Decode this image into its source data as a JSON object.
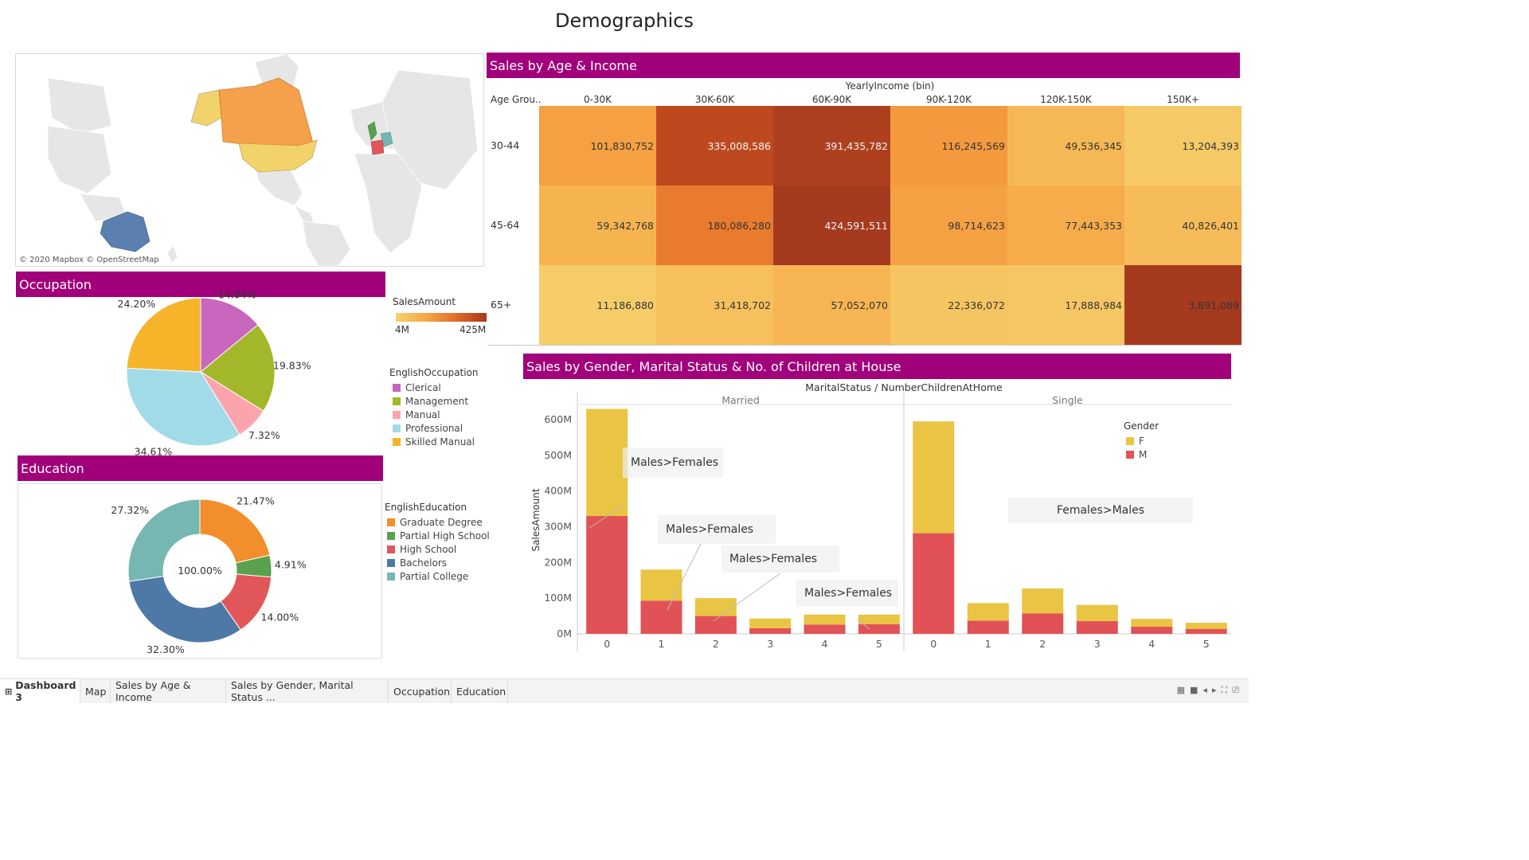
{
  "page_title": "Demographics",
  "map": {
    "credit": "© 2020 Mapbox © OpenStreetMap",
    "regions": [
      {
        "name": "Canada",
        "color": "#f5a04a"
      },
      {
        "name": "Alaska",
        "color": "#f2d36b"
      },
      {
        "name": "United States",
        "color": "#f2d36b"
      },
      {
        "name": "Australia",
        "color": "#5b7fae"
      },
      {
        "name": "United Kingdom",
        "color": "#59a14f"
      },
      {
        "name": "France",
        "color": "#e15759"
      },
      {
        "name": "Germany",
        "color": "#76b7b2"
      }
    ]
  },
  "age_income": {
    "header": "Sales by Age & Income",
    "column_group_label": "YearlyIncome (bin)",
    "row_header": "Age Grou..",
    "columns": [
      "0-30K",
      "30K-60K",
      "60K-90K",
      "90K-120K",
      "120K-150K",
      "150K+"
    ],
    "rows": [
      {
        "label": "30-44",
        "values": [
          "101,830,752",
          "335,008,586",
          "391,435,782",
          "116,245,569",
          "49,536,345",
          "13,204,393"
        ]
      },
      {
        "label": "45-64",
        "values": [
          "59,342,768",
          "180,086,280",
          "424,591,511",
          "98,714,623",
          "77,443,353",
          "40,826,401"
        ]
      },
      {
        "label": "65+",
        "values": [
          "11,186,880",
          "31,418,702",
          "57,052,070",
          "22,336,072",
          "17,888,984",
          "3,891,089"
        ]
      }
    ],
    "legend": {
      "title": "SalesAmount",
      "min_label": "4M",
      "max_label": "425M",
      "min_color": "#f5cd6a",
      "max_color": "#a63a1f"
    }
  },
  "occupation": {
    "header": "Occupation",
    "legend_title": "EnglishOccupation",
    "slices": [
      {
        "name": "Clerical",
        "value": 14.04,
        "label": "14.04%",
        "color": "#c966bd"
      },
      {
        "name": "Management",
        "value": 19.83,
        "label": "19.83%",
        "color": "#a3b72a"
      },
      {
        "name": "Manual",
        "value": 7.32,
        "label": "7.32%",
        "color": "#fca4ad"
      },
      {
        "name": "Professional",
        "value": 34.61,
        "label": "34.61%",
        "color": "#a2dbe8"
      },
      {
        "name": "Skilled Manual",
        "value": 24.2,
        "label": "24.20%",
        "color": "#f6b42a"
      }
    ]
  },
  "education": {
    "header": "Education",
    "legend_title": "EnglishEducation",
    "center_label": "100.00%",
    "slices": [
      {
        "name": "Graduate Degree",
        "value": 21.47,
        "label": "21.47%",
        "color": "#f28e2b"
      },
      {
        "name": "Partial High School",
        "value": 4.91,
        "label": "4.91%",
        "color": "#59a14f"
      },
      {
        "name": "High School",
        "value": 14.0,
        "label": "14.00%",
        "color": "#e15759"
      },
      {
        "name": "Bachelors",
        "value": 32.3,
        "label": "32.30%",
        "color": "#4e79a7"
      },
      {
        "name": "Partial College",
        "value": 27.32,
        "label": "27.32%",
        "color": "#76b7b2"
      }
    ]
  },
  "gender_marital": {
    "header": "Sales by Gender, Marital Status & No. of Children at House",
    "axis_title": "MaritalStatus / NumberChildrenAtHome",
    "ylabel": "SalesAmount",
    "y_ticks": [
      "0M",
      "100M",
      "200M",
      "300M",
      "400M",
      "500M",
      "600M"
    ],
    "legend_title": "Gender",
    "legend": [
      {
        "name": "F",
        "color": "#eac443"
      },
      {
        "name": "M",
        "color": "#e15257"
      }
    ],
    "annotations": [
      "Males>Females",
      "Males>Females",
      "Males>Females",
      "Males>Females",
      "Females>Males"
    ]
  },
  "chart_data": [
    {
      "type": "heatmap",
      "title": "Sales by Age & Income",
      "x_label": "YearlyIncome (bin)",
      "y_label": "Age Grou..",
      "x": [
        "0-30K",
        "30K-60K",
        "60K-90K",
        "90K-120K",
        "120K-150K",
        "150K+"
      ],
      "y": [
        "30-44",
        "45-64",
        "65+"
      ],
      "values": [
        [
          101830752,
          335008586,
          391435782,
          116245569,
          49536345,
          13204393
        ],
        [
          59342768,
          180086280,
          424591511,
          98714623,
          77443353,
          40826401
        ],
        [
          11186880,
          31418702,
          57052070,
          22336072,
          17888984,
          3891089
        ]
      ],
      "color_range": [
        4000000,
        425000000
      ]
    },
    {
      "type": "pie",
      "title": "Occupation",
      "categories": [
        "Clerical",
        "Management",
        "Manual",
        "Professional",
        "Skilled Manual"
      ],
      "values": [
        14.04,
        19.83,
        7.32,
        34.61,
        24.2
      ]
    },
    {
      "type": "pie",
      "title": "Education",
      "categories": [
        "Graduate Degree",
        "Partial High School",
        "High School",
        "Bachelors",
        "Partial College"
      ],
      "values": [
        21.47,
        4.91,
        14.0,
        32.3,
        27.32
      ]
    },
    {
      "type": "bar",
      "title": "Sales by Gender, Marital Status & No. of Children at House",
      "stacked": true,
      "groups": [
        {
          "name": "Married",
          "categories": [
            "0",
            "1",
            "2",
            "3",
            "4",
            "5"
          ],
          "series": [
            {
              "name": "M",
              "values": [
                330,
                93,
                50,
                16,
                26,
                27
              ]
            },
            {
              "name": "F",
              "values": [
                300,
                87,
                50,
                27,
                28,
                27
              ]
            }
          ]
        },
        {
          "name": "Single",
          "categories": [
            "0",
            "1",
            "2",
            "3",
            "4",
            "5"
          ],
          "series": [
            {
              "name": "M",
              "values": [
                282,
                37,
                57,
                36,
                20,
                14
              ]
            },
            {
              "name": "F",
              "values": [
                313,
                49,
                70,
                45,
                22,
                17
              ]
            }
          ]
        }
      ],
      "ylabel": "SalesAmount",
      "ylim": [
        0,
        620
      ],
      "y_unit": "M"
    }
  ],
  "tabs": [
    "Dashboard 3",
    "Map",
    "Sales by Age & Income",
    "Sales by Gender, Marital Status ...",
    "Occupation",
    "Education"
  ]
}
